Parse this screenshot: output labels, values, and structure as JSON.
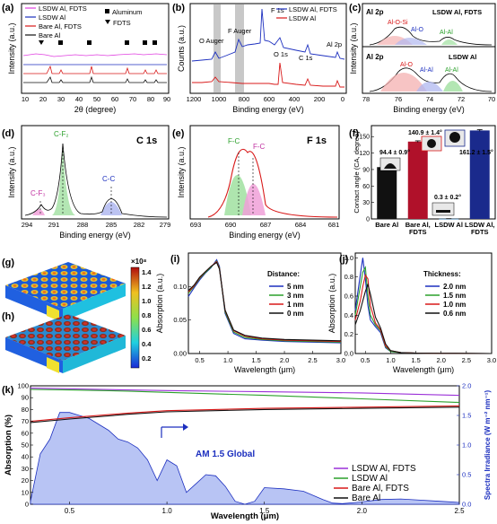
{
  "panels": {
    "a": {
      "label": "(a)",
      "legend": [
        "LSDW Al, FDTS",
        "LSDW Al",
        "Bare Al, FDTS",
        "Bare Al"
      ],
      "markers": [
        "Aluminum",
        "FDTS"
      ],
      "xlabel": "2θ (degree)",
      "ylabel": "Intensity (a.u.)",
      "xticks": [
        "10",
        "20",
        "30",
        "40",
        "50",
        "60",
        "70",
        "80",
        "90"
      ]
    },
    "b": {
      "label": "(b)",
      "legend": [
        "LSDW Al, FDTS",
        "LSDW Al"
      ],
      "annotations": [
        "F 1s",
        "O Auger",
        "F Auger",
        "O 1s",
        "C 1s",
        "Al 2p"
      ],
      "xlabel": "Binding energy (eV)",
      "ylabel": "Counts (a.u.)",
      "xticks": [
        "1200",
        "1000",
        "800",
        "600",
        "400",
        "200",
        "0"
      ]
    },
    "c": {
      "label": "(c)",
      "top_title": "Al 2p",
      "top_sample": "LSDW Al, FDTS",
      "top_peaks": [
        "Al-O-Si",
        "Al-O",
        "Al-Al"
      ],
      "bottom_title": "Al 2p",
      "bottom_sample": "LSDW Al",
      "bottom_peaks": [
        "Al-O",
        "Al-Al"
      ],
      "xlabel": "Binding energy (eV)",
      "ylabel": "Intensity (a.u.)",
      "xticks": [
        "78",
        "76",
        "74",
        "72",
        "70"
      ]
    },
    "d": {
      "label": "(d)",
      "title": "C 1s",
      "peaks": [
        "C-F₂",
        "C-F₃",
        "C-C"
      ],
      "xlabel": "Binding energy (eV)",
      "ylabel": "Intensity (a.u.)",
      "xticks": [
        "294",
        "291",
        "288",
        "285",
        "282",
        "279"
      ]
    },
    "e": {
      "label": "(e)",
      "title": "F 1s",
      "peaks": [
        "F-C",
        "F-C"
      ],
      "xlabel": "Binding energy (eV)",
      "ylabel": "Intensity (a.u.)",
      "xticks": [
        "693",
        "690",
        "687",
        "684",
        "681"
      ]
    },
    "f": {
      "label": "(f)",
      "ylabel": "Contact angle (CA, degree)",
      "yticks": [
        "0",
        "30",
        "60",
        "90",
        "120",
        "150"
      ],
      "ymax": 170,
      "values_text": [
        "94.4 ± 0.9°",
        "140.9 ± 1.4°",
        "0.3 ± 0.2°",
        "161.2 ± 1.5°"
      ]
    },
    "g": {
      "label": "(g)"
    },
    "h": {
      "label": "(h)"
    },
    "colorbar": {
      "exponent": "×10⁸",
      "ticks": [
        "1.4",
        "1.2",
        "1.0",
        "0.8",
        "0.6",
        "0.4",
        "0.2"
      ]
    },
    "i": {
      "label": "(i)",
      "legend_title": "Distance:",
      "legend": [
        "5 nm",
        "3 nm",
        "1 nm",
        "0 nm"
      ],
      "xlabel": "Wavelength (μm)",
      "ylabel": "Absorption (a.u.)",
      "xticks": [
        "0.5",
        "1.0",
        "1.5",
        "2.0",
        "2.5",
        "3.0"
      ],
      "yticks": [
        "0.00",
        "0.05",
        "0.10"
      ]
    },
    "j": {
      "label": "(j)",
      "legend_title": "Thickness:",
      "legend": [
        "2.0 nm",
        "1.5 nm",
        "1.0 nm",
        "0.6 nm"
      ],
      "xlabel": "Wavelength (μm)",
      "ylabel": "Absorption (a.u.)",
      "xticks": [
        "0.5",
        "1.0",
        "1.5",
        "2.0",
        "2.5",
        "3.0"
      ],
      "yticks": [
        "0.0",
        "0.2",
        "0.4",
        "0.6",
        "0.8",
        "1.0"
      ]
    },
    "k": {
      "label": "(k)",
      "legend": [
        "LSDW Al, FDTS",
        "LSDW Al",
        "Bare Al, FDTS",
        "Bare Al"
      ],
      "am_label": "AM 1.5 Global",
      "xlabel": "Wavelength (μm)",
      "ylabel": "Absorption (%)",
      "y2label": "Spectra Irradiance (W m⁻² nm⁻¹)",
      "xticks": [
        "0.5",
        "1.0",
        "1.5",
        "2.0",
        "2.5"
      ],
      "yticks": [
        "0",
        "10",
        "20",
        "30",
        "40",
        "50",
        "60",
        "70",
        "80",
        "90",
        "100"
      ],
      "y2ticks": [
        "0.0",
        "0.5",
        "1.0",
        "1.5",
        "2.0"
      ]
    }
  },
  "chart_data": [
    {
      "panel": "f",
      "type": "bar",
      "categories": [
        "Bare Al",
        "Bare Al, FDTS",
        "LSDW Al",
        "LSDW Al, FDTS"
      ],
      "values": [
        94.4,
        140.9,
        0.3,
        161.2
      ],
      "errors": [
        0.9,
        1.4,
        0.2,
        1.5
      ],
      "colors": [
        "#111111",
        "#b0112a",
        "#3a8fd0",
        "#1a2a8c"
      ],
      "ylim": [
        0,
        170
      ]
    },
    {
      "panel": "i",
      "type": "line",
      "xlim": [
        0.3,
        3.0
      ],
      "ylim": [
        0,
        0.15
      ],
      "x": [
        0.3,
        0.4,
        0.5,
        0.6,
        0.7,
        0.8,
        0.85,
        0.95,
        1.1,
        1.3,
        1.6,
        2.0,
        2.5,
        3.0
      ],
      "series": [
        {
          "name": "5 nm",
          "color": "#1c2fbf",
          "values": [
            0.085,
            0.098,
            0.11,
            0.12,
            0.128,
            0.14,
            0.13,
            0.06,
            0.03,
            0.022,
            0.02,
            0.018,
            0.017,
            0.016
          ]
        },
        {
          "name": "3 nm",
          "color": "#2aa02a",
          "values": [
            0.09,
            0.1,
            0.112,
            0.121,
            0.129,
            0.138,
            0.128,
            0.062,
            0.032,
            0.024,
            0.021,
            0.019,
            0.018,
            0.017
          ]
        },
        {
          "name": "1 nm",
          "color": "#d81818",
          "values": [
            0.092,
            0.101,
            0.113,
            0.122,
            0.13,
            0.137,
            0.127,
            0.064,
            0.034,
            0.026,
            0.022,
            0.02,
            0.019,
            0.018
          ]
        },
        {
          "name": "0 nm",
          "color": "#111111",
          "values": [
            0.094,
            0.102,
            0.114,
            0.122,
            0.13,
            0.136,
            0.126,
            0.065,
            0.035,
            0.027,
            0.023,
            0.021,
            0.02,
            0.019
          ]
        }
      ]
    },
    {
      "panel": "j",
      "type": "line",
      "xlim": [
        0.3,
        3.0
      ],
      "ylim": [
        0,
        1.05
      ],
      "x": [
        0.3,
        0.4,
        0.45,
        0.5,
        0.55,
        0.6,
        0.7,
        0.8,
        0.9,
        1.0,
        1.2,
        1.5,
        2.0,
        3.0
      ],
      "series": [
        {
          "name": "2.0 nm",
          "color": "#1c2fbf",
          "values": [
            0.45,
            0.82,
            1.0,
            0.78,
            0.5,
            0.35,
            0.28,
            0.22,
            0.06,
            0.02,
            0.01,
            0.005,
            0.002,
            0.0
          ]
        },
        {
          "name": "1.5 nm",
          "color": "#2aa02a",
          "values": [
            0.4,
            0.7,
            0.85,
            0.9,
            0.6,
            0.4,
            0.3,
            0.24,
            0.07,
            0.02,
            0.01,
            0.005,
            0.002,
            0.0
          ]
        },
        {
          "name": "1.0 nm",
          "color": "#d81818",
          "values": [
            0.35,
            0.55,
            0.7,
            0.82,
            0.78,
            0.5,
            0.32,
            0.25,
            0.08,
            0.03,
            0.01,
            0.005,
            0.002,
            0.0
          ]
        },
        {
          "name": "0.6 nm",
          "color": "#111111",
          "values": [
            0.3,
            0.45,
            0.55,
            0.65,
            0.72,
            0.62,
            0.38,
            0.27,
            0.1,
            0.03,
            0.01,
            0.005,
            0.002,
            0.0
          ]
        }
      ]
    },
    {
      "panel": "k",
      "type": "line",
      "xlim": [
        0.3,
        2.5
      ],
      "ylim": [
        0,
        100
      ],
      "y2lim": [
        0,
        2.0
      ],
      "x": [
        0.3,
        0.5,
        0.8,
        1.0,
        1.5,
        2.0,
        2.5
      ],
      "series": [
        {
          "name": "LSDW Al, FDTS",
          "color": "#9b30d8",
          "values": [
            98,
            97.5,
            96.5,
            96,
            95,
            94,
            92
          ]
        },
        {
          "name": "LSDW Al",
          "color": "#2aa02a",
          "values": [
            97,
            96.5,
            95.5,
            94.5,
            92,
            89,
            86
          ]
        },
        {
          "name": "Bare Al, FDTS",
          "color": "#d81818",
          "values": [
            70,
            73,
            77,
            79,
            81,
            82,
            83
          ]
        },
        {
          "name": "Bare Al",
          "color": "#111111",
          "values": [
            69,
            72,
            76,
            78,
            80,
            81,
            82
          ]
        }
      ],
      "am15_x": [
        0.3,
        0.35,
        0.4,
        0.45,
        0.5,
        0.55,
        0.6,
        0.65,
        0.7,
        0.75,
        0.8,
        0.85,
        0.9,
        0.95,
        1.0,
        1.05,
        1.1,
        1.15,
        1.2,
        1.25,
        1.3,
        1.35,
        1.4,
        1.45,
        1.5,
        1.6,
        1.7,
        1.8,
        1.85,
        1.9,
        2.0,
        2.1,
        2.2,
        2.3,
        2.4,
        2.5
      ],
      "am15_y": [
        0.05,
        0.85,
        1.1,
        1.55,
        1.55,
        1.5,
        1.45,
        1.35,
        1.25,
        1.1,
        1.05,
        0.95,
        0.75,
        0.4,
        0.75,
        0.65,
        0.2,
        0.35,
        0.5,
        0.48,
        0.3,
        0.05,
        0.0,
        0.05,
        0.28,
        0.26,
        0.22,
        0.08,
        0.02,
        0.01,
        0.04,
        0.08,
        0.09,
        0.07,
        0.05,
        0.03
      ]
    }
  ]
}
